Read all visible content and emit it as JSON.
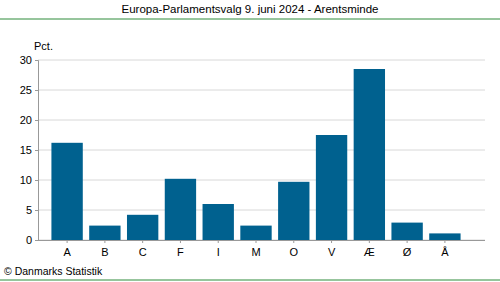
{
  "chart_data": {
    "type": "bar",
    "title": "Europa-Parlamentsvalg 9. juni 2024 - Arentsminde",
    "ylabel": "Pct.",
    "annotations": [
      "© Danmarks Statistik"
    ],
    "categories": [
      "A",
      "B",
      "C",
      "F",
      "I",
      "M",
      "O",
      "V",
      "Æ",
      "Ø",
      "Å"
    ],
    "values": [
      16.2,
      2.4,
      4.2,
      10.2,
      6.0,
      2.4,
      9.7,
      17.5,
      28.5,
      2.9,
      1.1
    ],
    "color": "#00618f",
    "ylim": [
      0,
      30
    ],
    "yticks": [
      0,
      5,
      10,
      15,
      20,
      25,
      30
    ],
    "grid": true
  }
}
